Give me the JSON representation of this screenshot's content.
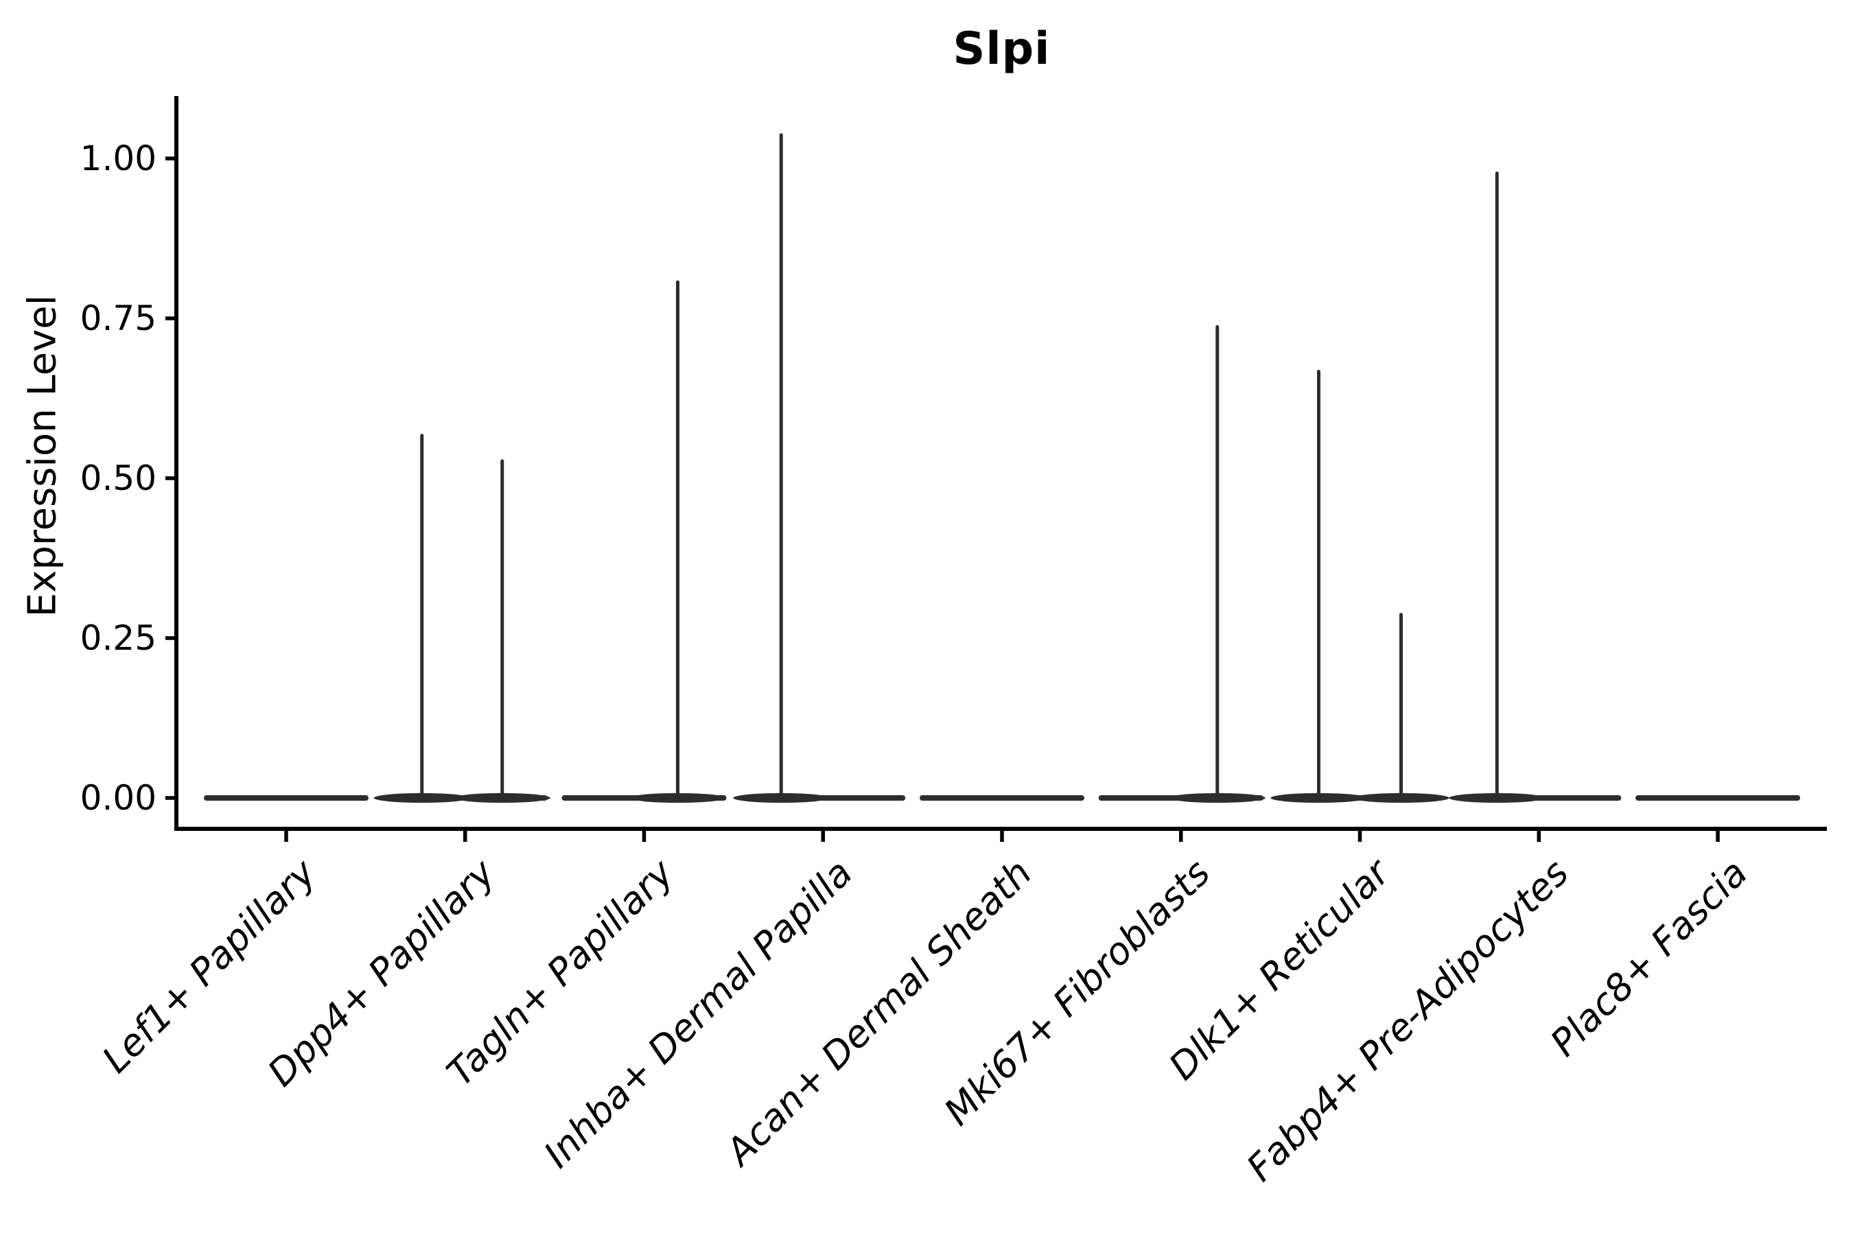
{
  "chart_data": {
    "type": "violin",
    "title": "Slpi",
    "ylabel": "Expression Level",
    "xlabel": "",
    "ytick_labels": [
      "0.00",
      "0.25",
      "0.50",
      "0.75",
      "1.00"
    ],
    "ytick_values": [
      0,
      0.25,
      0.5,
      0.75,
      1.0
    ],
    "ylim": [
      -0.05,
      1.1
    ],
    "grid": false,
    "legend": "none",
    "categories": [
      "Lef1+ Papillary",
      "Dpp4+ Papillary",
      "Tagln+ Papillary",
      "Inhba+ Dermal Papilla",
      "Acan+ Dermal Sheath",
      "Mki67+ Fibroblasts",
      "Dlk1+ Reticular",
      "Fabp4+ Pre-Adipocytes",
      "Plac8+ Fascia"
    ],
    "violins": [
      {
        "category": "Lef1+ Papillary",
        "baseline_value": 0,
        "spikes": []
      },
      {
        "category": "Dpp4+ Papillary",
        "baseline_value": 0,
        "spikes": [
          {
            "dx": -63,
            "value": 0.57
          },
          {
            "dx": 54,
            "value": 0.53
          }
        ]
      },
      {
        "category": "Tagln+ Papillary",
        "baseline_value": 0,
        "spikes": [
          {
            "dx": 49,
            "value": 0.81
          }
        ]
      },
      {
        "category": "Inhba+ Dermal Papilla",
        "baseline_value": 0,
        "spikes": [
          {
            "dx": -61,
            "value": 1.04
          }
        ]
      },
      {
        "category": "Acan+ Dermal Sheath",
        "baseline_value": 0,
        "spikes": []
      },
      {
        "category": "Mki67+ Fibroblasts",
        "baseline_value": 0,
        "spikes": [
          {
            "dx": 53,
            "value": 0.74
          }
        ]
      },
      {
        "category": "Dlk1+ Reticular",
        "baseline_value": 0,
        "spikes": [
          {
            "dx": -60,
            "value": 0.67
          },
          {
            "dx": 60,
            "value": 0.29
          }
        ]
      },
      {
        "category": "Fabp4+ Pre-Adipocytes",
        "baseline_value": 0,
        "spikes": [
          {
            "dx": -61,
            "value": 0.98
          }
        ]
      },
      {
        "category": "Plac8+ Fascia",
        "baseline_value": 0,
        "spikes": []
      }
    ],
    "colors": {
      "violin_stroke": "#2d2d2d",
      "axis": "#000000",
      "text": "#000000",
      "background": "#ffffff"
    }
  }
}
